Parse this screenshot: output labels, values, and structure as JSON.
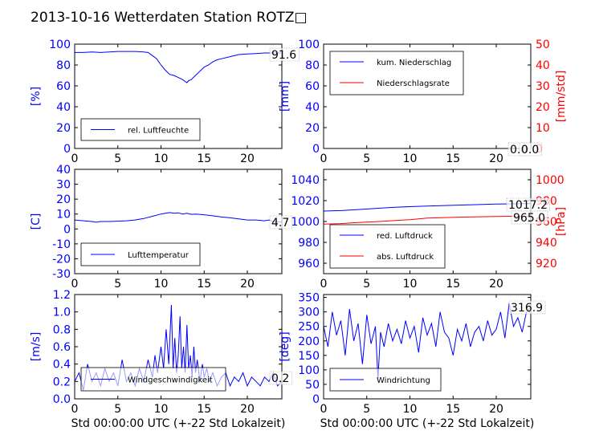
{
  "title": "2013-10-16 Wetterdaten Station ROTZ□",
  "colors": {
    "primary": "#0000ff",
    "secondary": "#ff0000",
    "frame": "#000000"
  },
  "chart_data": [
    {
      "type": "line",
      "ylabel": "[%]",
      "xlim": [
        0,
        24
      ],
      "xticks": [
        0,
        5,
        10,
        15,
        20
      ],
      "ylim": [
        0,
        100
      ],
      "yticks": [
        0,
        20,
        40,
        60,
        80,
        100
      ],
      "legend": [
        "rel. Luftfeuchte"
      ],
      "legend_position": "lower left",
      "last_value": "91.6",
      "series": [
        {
          "name": "rel. Luftfeuchte",
          "x": [
            0,
            1,
            2,
            3,
            4,
            5,
            6,
            7,
            8,
            8.5,
            9,
            9.5,
            10,
            10.5,
            11,
            11.5,
            12,
            12.5,
            13,
            13.2,
            13.5,
            14,
            14.5,
            15,
            15.5,
            16,
            16.5,
            17,
            18,
            19,
            20,
            21,
            22,
            23,
            23.5,
            24
          ],
          "y": [
            92,
            92,
            92.5,
            92,
            92.5,
            93,
            93,
            93,
            92.5,
            92,
            89,
            86,
            80,
            75,
            71,
            70,
            68,
            66,
            63,
            65,
            66,
            70,
            74,
            78,
            80,
            83,
            85,
            86,
            88,
            90,
            90.5,
            91,
            91.5,
            91.5,
            91.6,
            91.6
          ]
        }
      ]
    },
    {
      "type": "line",
      "ylabel": "[mm]",
      "ylabel_right": "[mm/std]",
      "xlim": [
        0,
        24
      ],
      "xticks": [
        0,
        5,
        10,
        15,
        20
      ],
      "ylim": [
        0,
        100
      ],
      "yticks": [
        0,
        20,
        40,
        60,
        80,
        100
      ],
      "ylim_right": [
        0,
        50
      ],
      "yticks_right": [
        0,
        10,
        20,
        30,
        40,
        50
      ],
      "legend": [
        "kum. Niederschlag",
        "Niederschlagsrate"
      ],
      "legend_position": "upper left",
      "last_value": "0.0",
      "last_value_right": "0.0",
      "series": [
        {
          "name": "kum. Niederschlag",
          "x": [
            0,
            24
          ],
          "y": [
            0,
            0
          ]
        },
        {
          "name": "Niederschlagsrate",
          "x": [
            0,
            24
          ],
          "y": [
            0,
            0
          ],
          "axis": "right"
        }
      ]
    },
    {
      "type": "line",
      "ylabel": "[C]",
      "xlim": [
        0,
        24
      ],
      "xticks": [
        0,
        5,
        10,
        15,
        20
      ],
      "ylim": [
        -30,
        40
      ],
      "yticks": [
        -30,
        -20,
        -10,
        0,
        10,
        20,
        30,
        40
      ],
      "legend": [
        "Lufttemperatur"
      ],
      "legend_position": "lower left",
      "last_value": "4.7",
      "series": [
        {
          "name": "Lufttemperatur",
          "x": [
            0,
            1,
            2,
            2.5,
            3,
            4,
            5,
            6,
            7,
            8,
            9,
            10,
            10.5,
            11,
            11.5,
            12,
            12.5,
            13,
            13.5,
            14,
            15,
            16,
            17,
            18,
            19,
            20,
            21,
            22,
            22.5,
            23,
            24
          ],
          "y": [
            6,
            5.5,
            5,
            4.5,
            5,
            5,
            5.2,
            5.5,
            6,
            7,
            8.5,
            10,
            10.5,
            11,
            10.5,
            10.8,
            10,
            10.5,
            9.8,
            10,
            9.5,
            8.8,
            8,
            7.5,
            6.8,
            6,
            6,
            5.5,
            6,
            5,
            4.7
          ]
        }
      ]
    },
    {
      "type": "line",
      "ylabel_right": "[hPa]",
      "xlim": [
        0,
        24
      ],
      "xticks": [
        0,
        5,
        10,
        15,
        20
      ],
      "ylim": [
        950,
        1050
      ],
      "yticks": [
        960,
        980,
        1000,
        1020,
        1040
      ],
      "ylim_right": [
        910,
        1010
      ],
      "yticks_right": [
        920,
        940,
        960,
        980,
        1000
      ],
      "legend": [
        "red. Luftdruck",
        "abs. Luftdruck"
      ],
      "legend_position": "lower left",
      "last_value": "1017.2",
      "last_value_right": "965.0",
      "series": [
        {
          "name": "red. Luftdruck",
          "x": [
            0,
            2,
            4,
            6,
            8,
            10,
            12,
            14,
            16,
            18,
            20,
            22,
            24
          ],
          "y": [
            1010,
            1010.5,
            1011.5,
            1012.5,
            1013.5,
            1014.2,
            1014.8,
            1015.3,
            1015.8,
            1016.2,
            1016.7,
            1017,
            1017.2
          ]
        },
        {
          "name": "abs. Luftdruck",
          "axis": "right",
          "x": [
            0,
            2,
            4,
            6,
            8,
            10,
            12,
            14,
            16,
            18,
            20,
            22,
            24
          ],
          "y": [
            957.5,
            958,
            959,
            959.8,
            960.8,
            961.8,
            963.2,
            963.8,
            964.2,
            964.5,
            964.8,
            965,
            965
          ]
        }
      ]
    },
    {
      "type": "line",
      "ylabel": "[m/s]",
      "xlabel": "Std 00:00:00 UTC (+-22 Std Lokalzeit)",
      "xlim": [
        0,
        24
      ],
      "xticks": [
        0,
        5,
        10,
        15,
        20
      ],
      "ylim": [
        0,
        1.2
      ],
      "yticks": [
        "0.0",
        "0.2",
        "0.4",
        "0.6",
        "0.8",
        "1.0",
        "1.2"
      ],
      "legend": [
        "Windgeschwindigkeit"
      ],
      "legend_position": "lower left",
      "last_value": "0.2",
      "series": [
        {
          "name": "Windgeschwindigkeit",
          "x": [
            0,
            0.5,
            1,
            1.5,
            2,
            2.5,
            3,
            3.5,
            4,
            4.5,
            5,
            5.5,
            6,
            6.5,
            7,
            7.5,
            8,
            8.5,
            9,
            9.3,
            9.6,
            10,
            10.3,
            10.6,
            10.9,
            11.2,
            11.4,
            11.6,
            11.8,
            12,
            12.2,
            12.4,
            12.6,
            12.8,
            13,
            13.2,
            13.4,
            13.6,
            13.8,
            14,
            14.2,
            14.5,
            14.8,
            15,
            15.3,
            15.6,
            16,
            16.5,
            17,
            17.5,
            18,
            18.5,
            19,
            19.5,
            20,
            20.5,
            21,
            21.5,
            22,
            22.5,
            23,
            23.5,
            24
          ],
          "y": [
            0.2,
            0.3,
            0.1,
            0.4,
            0.2,
            0.3,
            0.15,
            0.35,
            0.2,
            0.3,
            0.15,
            0.45,
            0.2,
            0.3,
            0.15,
            0.35,
            0.2,
            0.45,
            0.25,
            0.5,
            0.3,
            0.6,
            0.35,
            0.8,
            0.4,
            1.08,
            0.35,
            0.7,
            0.3,
            0.5,
            0.95,
            0.35,
            0.6,
            0.3,
            0.85,
            0.35,
            0.5,
            0.25,
            0.6,
            0.3,
            0.45,
            0.2,
            0.4,
            0.25,
            0.35,
            0.2,
            0.3,
            0.15,
            0.25,
            0.3,
            0.15,
            0.25,
            0.2,
            0.3,
            0.15,
            0.25,
            0.2,
            0.15,
            0.25,
            0.2,
            0.3,
            0.15,
            0.2
          ]
        }
      ]
    },
    {
      "type": "line",
      "ylabel": "[deg]",
      "xlabel": "Std 00:00:00 UTC (+-22 Std Lokalzeit)",
      "xlim": [
        0,
        24
      ],
      "xticks": [
        0,
        5,
        10,
        15,
        20
      ],
      "ylim": [
        0,
        360
      ],
      "yticks": [
        0,
        50,
        100,
        150,
        200,
        250,
        300,
        350
      ],
      "legend": [
        "Windrichtung"
      ],
      "legend_position": "lower left",
      "last_value": "316.9",
      "series": [
        {
          "name": "Windrichtung",
          "x": [
            0,
            0.5,
            1,
            1.5,
            2,
            2.5,
            3,
            3.5,
            4,
            4.5,
            5,
            5.5,
            6,
            6.3,
            6.6,
            7,
            7.5,
            8,
            8.5,
            9,
            9.5,
            10,
            10.5,
            11,
            11.5,
            12,
            12.5,
            13,
            13.5,
            14,
            14.5,
            15,
            15.5,
            16,
            16.5,
            17,
            17.5,
            18,
            18.5,
            19,
            19.5,
            20,
            20.5,
            21,
            21.5,
            22,
            22.5,
            23,
            23.5,
            24
          ],
          "y": [
            250,
            180,
            300,
            220,
            270,
            150,
            310,
            200,
            260,
            120,
            290,
            190,
            250,
            70,
            230,
            180,
            260,
            200,
            240,
            190,
            270,
            210,
            250,
            160,
            280,
            220,
            260,
            180,
            300,
            230,
            210,
            150,
            240,
            200,
            260,
            180,
            230,
            250,
            200,
            270,
            220,
            240,
            300,
            210,
            330,
            250,
            280,
            230,
            300,
            316.9
          ]
        }
      ]
    }
  ]
}
